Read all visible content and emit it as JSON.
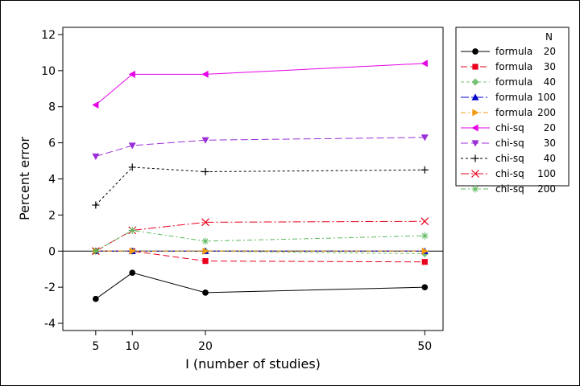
{
  "chart_data": {
    "type": "line",
    "title": "",
    "xlabel": "I (number of studies)",
    "ylabel": "Percent error",
    "x": [
      5,
      10,
      20,
      50
    ],
    "xticks": [
      5,
      10,
      20,
      50
    ],
    "xlim": [
      0.5,
      52.5
    ],
    "ylim": [
      -4.4,
      12.4
    ],
    "yticks": [
      -4,
      -2,
      0,
      2,
      4,
      6,
      8,
      10,
      12
    ],
    "reference_line_y": 0,
    "grid": false,
    "legend_position": "right",
    "legend_header": "N",
    "series": [
      {
        "name": "formula",
        "n": "20",
        "color": "#000000",
        "dash": "",
        "marker": "circle",
        "values": [
          -2.65,
          -1.2,
          -2.3,
          -2.0
        ]
      },
      {
        "name": "formula",
        "n": "30",
        "color": "#e8001c",
        "dash": "8,4",
        "marker": "square",
        "values": [
          0.0,
          0.0,
          -0.55,
          -0.6
        ]
      },
      {
        "name": "formula",
        "n": "40",
        "color": "#74c474",
        "dash": "4,3",
        "marker": "diamond",
        "values": [
          0.0,
          0.0,
          0.0,
          -0.15
        ]
      },
      {
        "name": "formula",
        "n": "100",
        "color": "#0000c8",
        "dash": "10,3,2,3",
        "marker": "triangle-up",
        "values": [
          0.0,
          0.0,
          0.0,
          0.0
        ]
      },
      {
        "name": "formula",
        "n": "200",
        "color": "#f39c12",
        "dash": "6,3,2,3",
        "marker": "triangle-right",
        "values": [
          0.0,
          0.0,
          0.0,
          0.0
        ]
      },
      {
        "name": "chi-sq",
        "n": "20",
        "color": "#e600e6",
        "dash": "",
        "marker": "triangle-left",
        "values": [
          8.1,
          9.8,
          9.8,
          10.4
        ]
      },
      {
        "name": "chi-sq",
        "n": "30",
        "color": "#9b30d9",
        "dash": "9,4",
        "marker": "triangle-down",
        "values": [
          5.25,
          5.85,
          6.15,
          6.3
        ]
      },
      {
        "name": "chi-sq",
        "n": "40",
        "color": "#000000",
        "dash": "3,3",
        "marker": "plus",
        "values": [
          2.55,
          4.65,
          4.4,
          4.5
        ]
      },
      {
        "name": "chi-sq",
        "n": "100",
        "color": "#e8001c",
        "dash": "10,3,2,3",
        "marker": "x",
        "values": [
          0.0,
          1.15,
          1.6,
          1.65
        ]
      },
      {
        "name": "chi-sq",
        "n": "200",
        "color": "#5cb85c",
        "dash": "6,3,2,3",
        "marker": "asterisk",
        "values": [
          0.0,
          1.15,
          0.55,
          0.85
        ]
      }
    ]
  }
}
